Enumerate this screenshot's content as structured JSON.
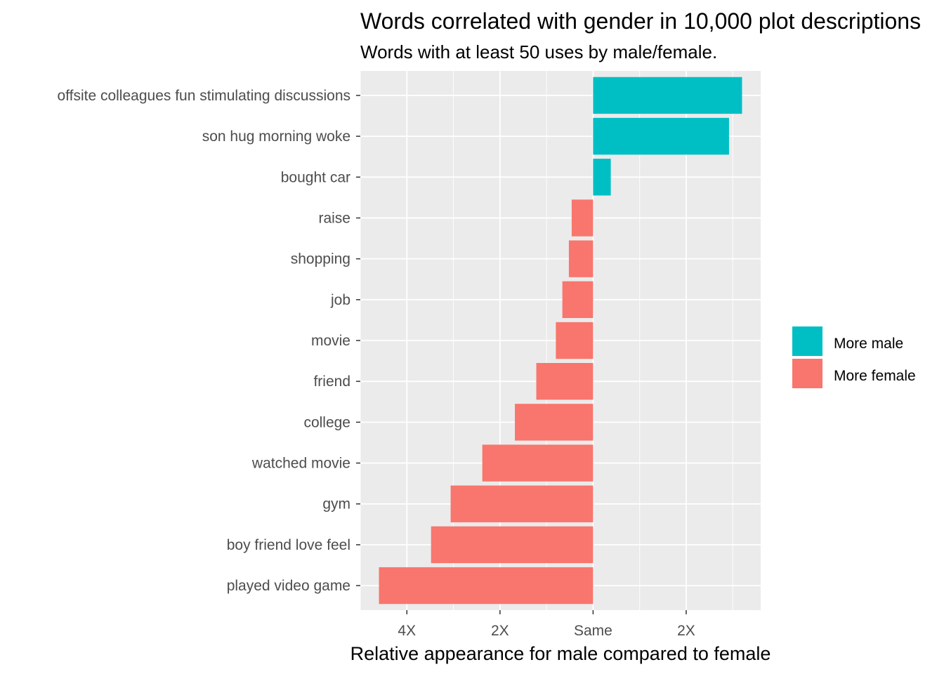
{
  "chart_data": {
    "type": "bar",
    "orientation": "horizontal",
    "title": "Words correlated with gender in 10,000 plot descriptions",
    "subtitle": "Words with at least 50 uses by male/female.",
    "xlabel": "Relative appearance for male compared to female",
    "ylabel": "",
    "x_scale": "log2",
    "xlim": [
      -2.5,
      1.8
    ],
    "x_ticks": [
      {
        "value": -2,
        "label": "4X"
      },
      {
        "value": -1,
        "label": "2X"
      },
      {
        "value": 0,
        "label": "Same"
      },
      {
        "value": 1,
        "label": "2X"
      }
    ],
    "categories": [
      "offsite colleagues fun stimulating discussions",
      "son hug morning woke",
      "bought car",
      "raise",
      "shopping",
      "job",
      "movie",
      "friend",
      "college",
      "watched movie",
      "gym",
      "boy friend love feel",
      "played video game"
    ],
    "values": [
      1.6,
      1.46,
      0.19,
      -0.23,
      -0.26,
      -0.33,
      -0.4,
      -0.61,
      -0.84,
      -1.19,
      -1.53,
      -1.74,
      -2.3
    ],
    "series": [
      {
        "name": "More male",
        "color": "#00BFC4"
      },
      {
        "name": "More female",
        "color": "#F8766D"
      }
    ],
    "legend_position": "right",
    "grid": true,
    "panel_background": "#EBEBEB"
  }
}
